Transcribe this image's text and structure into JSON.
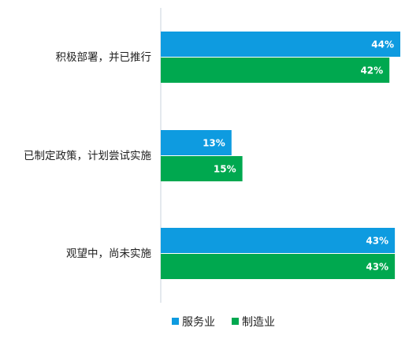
{
  "chart_data": {
    "type": "bar",
    "orientation": "horizontal",
    "categories": [
      "积极部署，并已推行",
      "已制定政策，计划尝试实施",
      "观望中，尚未实施"
    ],
    "series": [
      {
        "name": "服务业",
        "values": [
          44,
          13,
          43
        ],
        "labels": [
          "44%",
          "13%",
          "43%"
        ],
        "color": "#0E9BE0"
      },
      {
        "name": "制造业",
        "values": [
          42,
          15,
          43
        ],
        "labels": [
          "42%",
          "15%",
          "43%"
        ],
        "color": "#00A84F"
      }
    ],
    "unit": "%",
    "xlim": [
      0,
      45
    ],
    "grid": false,
    "legend_position": "bottom"
  }
}
